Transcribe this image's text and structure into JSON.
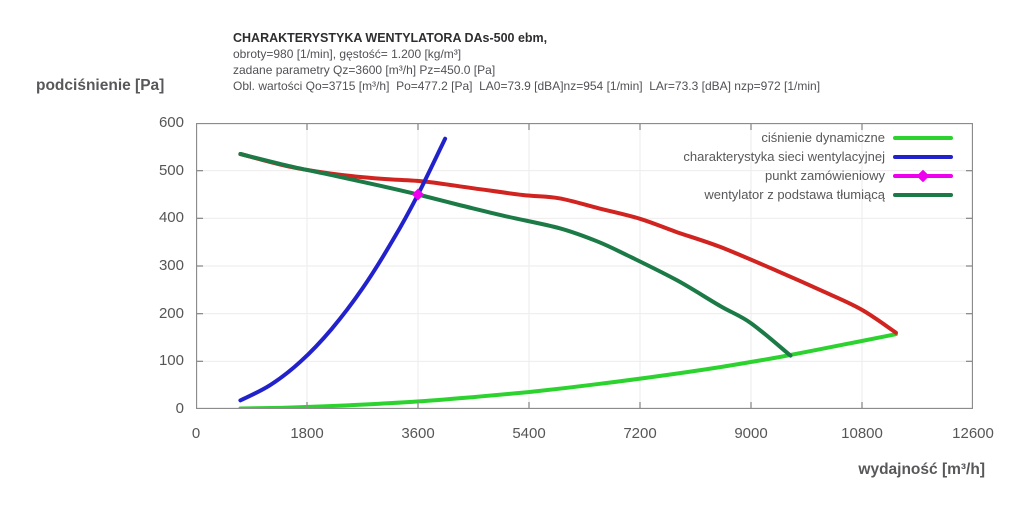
{
  "title_block": {
    "line1": "CHARAKTERYSTYKA WENTYLATORA DAs-500 ebm,",
    "line2": "obroty=980 [1/min], gęstość= 1.200 [kg/m³]",
    "line3": "zadane parametry Qz=3600 [m³/h] Pz=450.0 [Pa]",
    "line4": "Obl. wartości Qo=3715 [m³/h]  Po=477.2 [Pa]  LA0=73.9 [dBA]nz=954 [1/min]  LAr=73.3 [dBA] nzp=972 [1/min]"
  },
  "chart_data": {
    "type": "line",
    "title": "CHARAKTERYSTYKA WENTYLATORA DAs-500 ebm,",
    "xlabel": "wydajność [m³/h]",
    "ylabel": "podciśnienie [Pa]",
    "xlim": [
      0,
      12600
    ],
    "ylim": [
      0,
      600
    ],
    "xticks": [
      0,
      1800,
      3600,
      5400,
      7200,
      9000,
      10800,
      12600
    ],
    "yticks": [
      0,
      100,
      200,
      300,
      400,
      500,
      600
    ],
    "grid": true,
    "legend_position": "top-right-inside",
    "frame_color": "#8c8c8c",
    "grid_color": "#eeebeb",
    "series": [
      {
        "id": "cisnienie-dynamiczne",
        "label": "ciśnienie dynamiczne",
        "color": "#2cd32f",
        "in_legend": true,
        "points": [
          [
            720,
            1
          ],
          [
            1500,
            3
          ],
          [
            2500,
            8
          ],
          [
            3500,
            15
          ],
          [
            4500,
            25
          ],
          [
            5500,
            37
          ],
          [
            6500,
            52
          ],
          [
            7500,
            69
          ],
          [
            8500,
            88
          ],
          [
            9500,
            110
          ],
          [
            10500,
            135
          ],
          [
            11350,
            157
          ]
        ]
      },
      {
        "id": "wentylator-das500",
        "label": null,
        "color": "#d12420",
        "in_legend": false,
        "points": [
          [
            720,
            535
          ],
          [
            1500,
            509
          ],
          [
            2300,
            492
          ],
          [
            3000,
            483
          ],
          [
            3715,
            477
          ],
          [
            4500,
            463
          ],
          [
            5300,
            449
          ],
          [
            5890,
            442
          ],
          [
            6530,
            421
          ],
          [
            7200,
            399
          ],
          [
            7800,
            371
          ],
          [
            8500,
            340
          ],
          [
            9400,
            291
          ],
          [
            10200,
            245
          ],
          [
            10800,
            208
          ],
          [
            11350,
            160
          ]
        ]
      },
      {
        "id": "wentylator-z-podstawa-tlumiaca",
        "label": "wentylator z podstawa tłumiącą",
        "color": "#1b7a46",
        "in_legend": true,
        "points": [
          [
            720,
            535
          ],
          [
            1500,
            510
          ],
          [
            2300,
            488
          ],
          [
            3000,
            468
          ],
          [
            3600,
            450
          ],
          [
            4300,
            427
          ],
          [
            5000,
            405
          ],
          [
            5900,
            379
          ],
          [
            6500,
            352
          ],
          [
            7000,
            322
          ],
          [
            7800,
            270
          ],
          [
            8500,
            216
          ],
          [
            9000,
            180
          ],
          [
            9640,
            112
          ]
        ]
      },
      {
        "id": "charakterystyka-sieci",
        "label": "charakterystyka sieci wentylacyjnej",
        "color": "#2222cc",
        "in_legend": true,
        "points": [
          [
            720,
            18
          ],
          [
            1200,
            50
          ],
          [
            1700,
            100
          ],
          [
            2200,
            168
          ],
          [
            2700,
            253
          ],
          [
            3200,
            356
          ],
          [
            3600,
            450
          ],
          [
            4040,
            567
          ]
        ]
      }
    ],
    "order_point": {
      "label": "punkt zamówieniowy",
      "color": "#ee00ee",
      "x": 3600,
      "y": 450
    }
  },
  "legend": {
    "items": [
      {
        "label": "ciśnienie dynamiczne",
        "color": "#2cd32f",
        "marker": false
      },
      {
        "label": "charakterystyka sieci wentylacyjnej",
        "color": "#2222cc",
        "marker": false
      },
      {
        "label": "punkt zamówieniowy",
        "color": "#ee00ee",
        "marker": true
      },
      {
        "label": "wentylator z podstawa tłumiącą",
        "color": "#1b7a46",
        "marker": false
      }
    ]
  }
}
